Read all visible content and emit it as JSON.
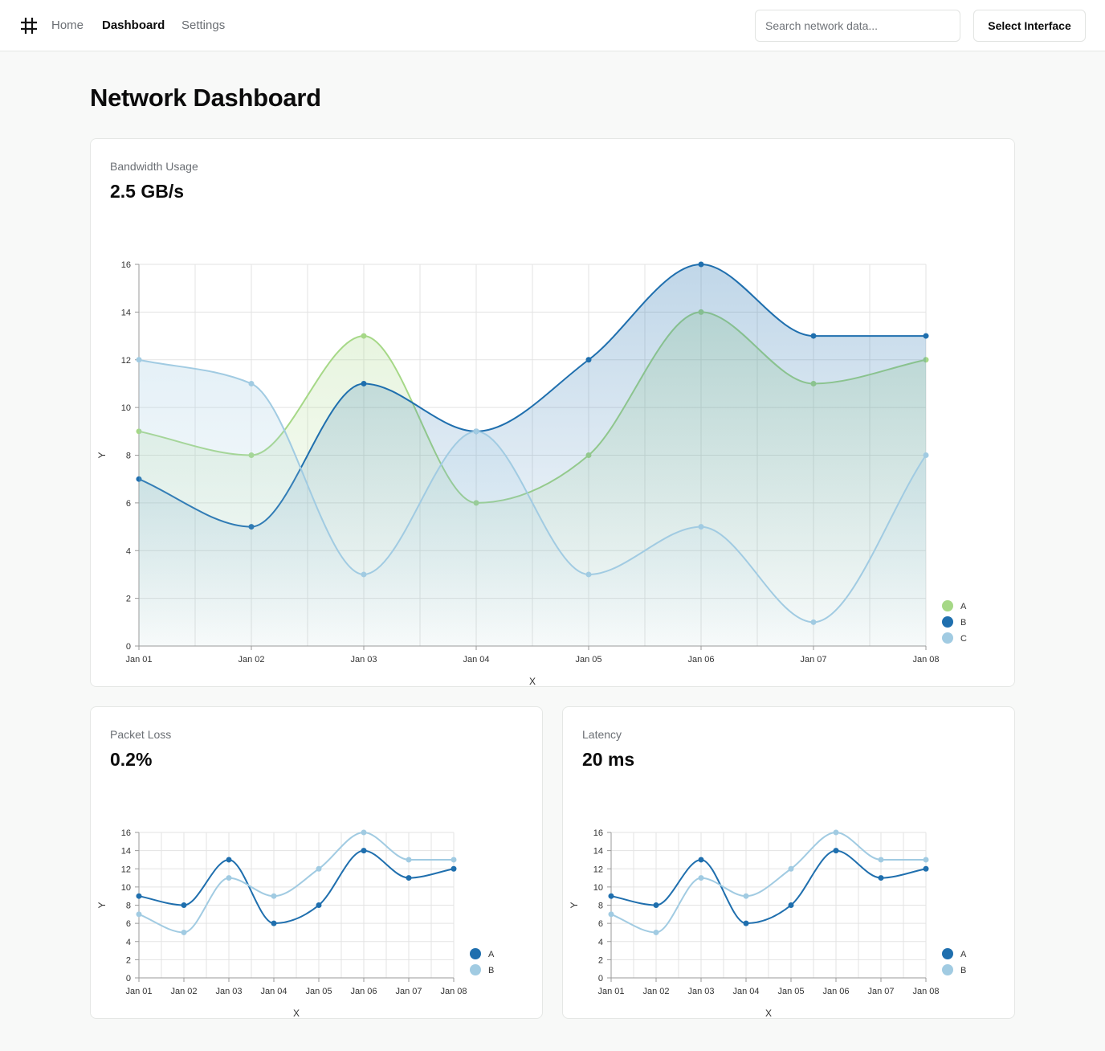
{
  "nav": {
    "home": "Home",
    "dashboard": "Dashboard",
    "settings": "Settings",
    "search_placeholder": "Search network data...",
    "select_interface": "Select Interface"
  },
  "page": {
    "title": "Network Dashboard"
  },
  "cards": {
    "bandwidth": {
      "title": "Bandwidth Usage",
      "value": "2.5 GB/s"
    },
    "packet_loss": {
      "title": "Packet Loss",
      "value": "0.2%"
    },
    "latency": {
      "title": "Latency",
      "value": "20 ms"
    }
  },
  "colors": {
    "A_green": "#a6d887",
    "B_dark": "#1f6fae",
    "C_light": "#a1cbe2"
  },
  "chart_data": [
    {
      "type": "area",
      "xlabel": "X",
      "ylabel": "Y",
      "categories": [
        "Jan 01",
        "Jan 02",
        "Jan 03",
        "Jan 04",
        "Jan 05",
        "Jan 06",
        "Jan 07",
        "Jan 08"
      ],
      "ylim": [
        0,
        16
      ],
      "yticks": [
        0,
        2,
        4,
        6,
        8,
        10,
        12,
        14,
        16
      ],
      "grid": true,
      "legend": "bottom-right",
      "series": [
        {
          "name": "A",
          "color": "#a6d887",
          "values": [
            9,
            8,
            13,
            6,
            8,
            14,
            11,
            12
          ]
        },
        {
          "name": "B",
          "color": "#1f6fae",
          "values": [
            7,
            5,
            11,
            9,
            12,
            16,
            13,
            13
          ]
        },
        {
          "name": "C",
          "color": "#a1cbe2",
          "values": [
            12,
            11,
            3,
            9,
            3,
            5,
            1,
            8
          ]
        }
      ]
    },
    {
      "type": "line",
      "xlabel": "X",
      "ylabel": "Y",
      "categories": [
        "Jan 01",
        "Jan 02",
        "Jan 03",
        "Jan 04",
        "Jan 05",
        "Jan 06",
        "Jan 07",
        "Jan 08"
      ],
      "ylim": [
        0,
        16
      ],
      "yticks": [
        0,
        2,
        4,
        6,
        8,
        10,
        12,
        14,
        16
      ],
      "grid": true,
      "legend": "bottom-right",
      "series": [
        {
          "name": "A",
          "color": "#1f6fae",
          "values": [
            9,
            8,
            13,
            6,
            8,
            14,
            11,
            12
          ]
        },
        {
          "name": "B",
          "color": "#a1cbe2",
          "values": [
            7,
            5,
            11,
            9,
            12,
            16,
            13,
            13
          ]
        }
      ]
    },
    {
      "type": "line",
      "xlabel": "X",
      "ylabel": "Y",
      "categories": [
        "Jan 01",
        "Jan 02",
        "Jan 03",
        "Jan 04",
        "Jan 05",
        "Jan 06",
        "Jan 07",
        "Jan 08"
      ],
      "ylim": [
        0,
        16
      ],
      "yticks": [
        0,
        2,
        4,
        6,
        8,
        10,
        12,
        14,
        16
      ],
      "grid": true,
      "legend": "bottom-right",
      "series": [
        {
          "name": "A",
          "color": "#1f6fae",
          "values": [
            9,
            8,
            13,
            6,
            8,
            14,
            11,
            12
          ]
        },
        {
          "name": "B",
          "color": "#a1cbe2",
          "values": [
            7,
            5,
            11,
            9,
            12,
            16,
            13,
            13
          ]
        }
      ]
    }
  ]
}
